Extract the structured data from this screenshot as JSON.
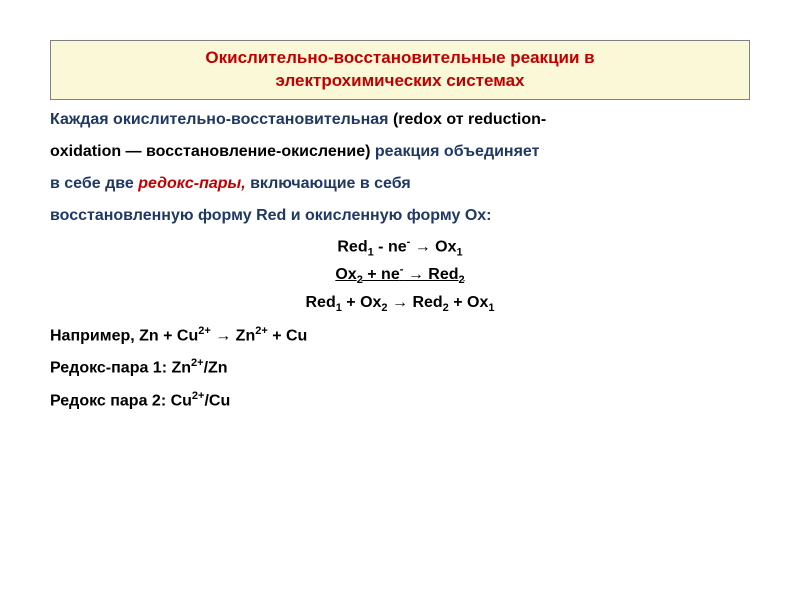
{
  "title": {
    "line1": "Окислительно-восстановительные реакции в",
    "line2": "электрохимических системах"
  },
  "p1": {
    "a": "Каждая окислительно-восстановительная ",
    "b": "(redox от reduction-",
    "c": "oxidation — восстановление-окисление)",
    "d": " реакция объединяет",
    "e": "в себе две ",
    "f": "редокс-пары,",
    "g": " включающие в себя",
    "h": "восстановленную форму Red и окисленную форму Ox:"
  },
  "eq": {
    "eq1_a": "Red",
    "eq1_b": "1",
    "eq1_c": " - ne",
    "eq1_d": "-",
    "eq1_e": " → Ox",
    "eq1_f": "1",
    "eq2_a": "Ox",
    "eq2_b": "2",
    "eq2_c": " + ne",
    "eq2_d": "-",
    "eq2_e": " → Red",
    "eq2_f": "2",
    "eq3_a": "Red",
    "eq3_b": "1",
    "eq3_c": " + Ox",
    "eq3_d": "2",
    "eq3_e": " → Red",
    "eq3_f": "2",
    "eq3_g": " + Ox",
    "eq3_h": "1"
  },
  "ex": {
    "lead": "Например,  Zn + Cu",
    "s1": "2+",
    "mid1": " → Zn",
    "s2": "2+",
    "mid2": " + Cu",
    "p1a": "Редокс-пара 1: Zn",
    "p1b": "2+",
    "p1c": "/Zn",
    "p2a": "Редокс пара 2: Cu",
    "p2b": "2+",
    "p2c": "/Cu"
  },
  "colors": {
    "title_bg": "#fbf8d8",
    "accent": "#c00000",
    "navy": "#1f3864",
    "text": "#000000",
    "background": "#ffffff"
  },
  "typography": {
    "title_fontsize": 17,
    "body_fontsize": 16,
    "body_lineheight": 2.0,
    "eq_lineheight": 1.6
  }
}
